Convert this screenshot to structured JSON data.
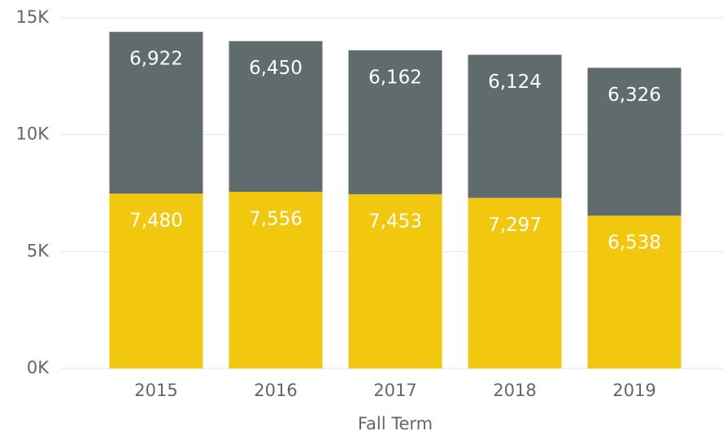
{
  "chart_data": {
    "type": "stacked_bar",
    "x_label": "Fall Term",
    "categories": [
      "2015",
      "2016",
      "2017",
      "2018",
      "2019"
    ],
    "series": [
      {
        "color": "#F2C80F",
        "values": [
          7480,
          7556,
          7453,
          7297,
          6538
        ],
        "value_labels": [
          "7,480",
          "7,556",
          "7,453",
          "7,297",
          "6,538"
        ]
      },
      {
        "color": "#5F6B6D",
        "values": [
          6922,
          6450,
          6162,
          6124,
          6326
        ],
        "value_labels": [
          "6,922",
          "6,450",
          "6,162",
          "6,124",
          "6,326"
        ]
      }
    ],
    "ylim": [
      0,
      15000
    ],
    "yticks": [
      {
        "value": 0,
        "label": "0K"
      },
      {
        "value": 5000,
        "label": "5K"
      },
      {
        "value": 10000,
        "label": "10K"
      },
      {
        "value": 15000,
        "label": "15K"
      }
    ],
    "grid": true
  }
}
